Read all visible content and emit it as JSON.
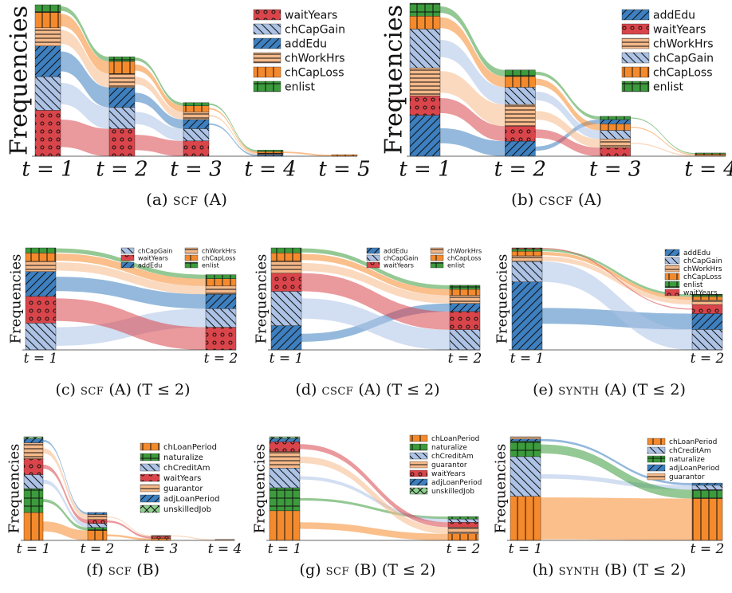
{
  "colors": {
    "waitYears": "#d9454a",
    "chCapGain": "#adc3e6",
    "addEdu": "#3d7fbf",
    "chWorkHrs": "#f5b98a",
    "chCapLoss": "#f58a2c",
    "enlist": "#3c9b3c",
    "chLoanPeriod": "#f58a2c",
    "naturalize": "#3c9b3c",
    "chCreditAm": "#adc3e6",
    "guarantor": "#f5b98a",
    "adjLoanPeriod": "#3d7fbf",
    "unskilledJob": "#8fd08f"
  },
  "patterns": {
    "waitYears": "dots",
    "chCapGain": "diag-back",
    "addEdu": "diag-fwd",
    "chWorkHrs": "hlines",
    "chCapLoss": "vlines",
    "enlist": "grid",
    "chLoanPeriod": "vlines",
    "naturalize": "grid",
    "chCreditAm": "diag-back",
    "guarantor": "hlines",
    "adjLoanPeriod": "diag-fwd",
    "unskilledJob": "cross"
  },
  "y_axis_label": "Frequencies",
  "chart_data": [
    {
      "id": "a",
      "type": "sankey",
      "caption_letter": "(a)",
      "caption_method": "scf",
      "caption_suffix": "(A)",
      "legend": [
        "waitYears",
        "chCapGain",
        "addEdu",
        "chWorkHrs",
        "chCapLoss",
        "enlist"
      ],
      "time_labels": [
        "t = 1",
        "t = 2",
        "t = 3",
        "t = 4",
        "t = 5"
      ],
      "stacks": [
        [
          [
            "waitYears",
            30
          ],
          [
            "chCapGain",
            22
          ],
          [
            "addEdu",
            20
          ],
          [
            "chWorkHrs",
            12
          ],
          [
            "chCapLoss",
            10
          ],
          [
            "enlist",
            5
          ]
        ],
        [
          [
            "waitYears",
            18
          ],
          [
            "chCapGain",
            14
          ],
          [
            "addEdu",
            13
          ],
          [
            "chWorkHrs",
            9
          ],
          [
            "chCapLoss",
            8
          ],
          [
            "enlist",
            3
          ]
        ],
        [
          [
            "waitYears",
            10
          ],
          [
            "chCapGain",
            8
          ],
          [
            "addEdu",
            6
          ],
          [
            "chWorkHrs",
            5
          ],
          [
            "chCapLoss",
            4
          ],
          [
            "enlist",
            2
          ]
        ],
        [
          [
            "addEdu",
            1
          ],
          [
            "chWorkHrs",
            1
          ],
          [
            "chCapLoss",
            1
          ],
          [
            "enlist",
            1
          ]
        ],
        [
          [
            "chCapLoss",
            1
          ]
        ]
      ]
    },
    {
      "id": "b",
      "type": "sankey",
      "caption_letter": "(b)",
      "caption_method": "cscf",
      "caption_suffix": "(A)",
      "legend": [
        "addEdu",
        "waitYears",
        "chWorkHrs",
        "chCapGain",
        "chCapLoss",
        "enlist"
      ],
      "time_labels": [
        "t = 1",
        "t = 2",
        "t = 3",
        "t = 4"
      ],
      "stacks": [
        [
          [
            "addEdu",
            38
          ],
          [
            "waitYears",
            18
          ],
          [
            "chWorkHrs",
            26
          ],
          [
            "chCapGain",
            36
          ],
          [
            "chCapLoss",
            12
          ],
          [
            "enlist",
            12
          ]
        ],
        [
          [
            "addEdu",
            14
          ],
          [
            "waitYears",
            14
          ],
          [
            "chWorkHrs",
            20
          ],
          [
            "chCapGain",
            16
          ],
          [
            "chCapLoss",
            10
          ],
          [
            "enlist",
            6
          ]
        ],
        [
          [
            "waitYears",
            8
          ],
          [
            "chWorkHrs",
            8
          ],
          [
            "chCapGain",
            8
          ],
          [
            "chCapLoss",
            6
          ],
          [
            "addEdu",
            4
          ],
          [
            "enlist",
            3
          ]
        ],
        [
          [
            "chWorkHrs",
            1
          ],
          [
            "chCapLoss",
            1
          ],
          [
            "enlist",
            1
          ]
        ]
      ]
    },
    {
      "id": "c",
      "type": "sankey",
      "caption_letter": "(c)",
      "caption_method": "scf",
      "caption_suffix": "(A) (T ≤ 2)",
      "legend": [
        "chCapGain",
        "waitYears",
        "addEdu",
        "chWorkHrs",
        "chCapLoss",
        "enlist"
      ],
      "time_labels": [
        "t = 1",
        "t = 2"
      ],
      "stacks": [
        [
          [
            "chCapGain",
            26
          ],
          [
            "waitYears",
            26
          ],
          [
            "addEdu",
            24
          ],
          [
            "chWorkHrs",
            10
          ],
          [
            "chCapLoss",
            8
          ],
          [
            "enlist",
            5
          ]
        ],
        [
          [
            "waitYears",
            22
          ],
          [
            "chCapGain",
            18
          ],
          [
            "addEdu",
            14
          ],
          [
            "chWorkHrs",
            8
          ],
          [
            "chCapLoss",
            7
          ],
          [
            "enlist",
            4
          ]
        ]
      ]
    },
    {
      "id": "d",
      "type": "sankey",
      "caption_letter": "(d)",
      "caption_method": "cscf",
      "caption_suffix": "(A) (T ≤ 2)",
      "legend": [
        "addEdu",
        "chCapGain",
        "waitYears",
        "chWorkHrs",
        "chCapLoss",
        "enlist"
      ],
      "time_labels": [
        "t = 1",
        "t = 2"
      ],
      "stacks": [
        [
          [
            "addEdu",
            24
          ],
          [
            "chCapGain",
            34
          ],
          [
            "waitYears",
            18
          ],
          [
            "chWorkHrs",
            12
          ],
          [
            "chCapLoss",
            8
          ],
          [
            "enlist",
            5
          ]
        ],
        [
          [
            "chCapGain",
            20
          ],
          [
            "waitYears",
            18
          ],
          [
            "addEdu",
            8
          ],
          [
            "chWorkHrs",
            8
          ],
          [
            "chCapLoss",
            6
          ],
          [
            "enlist",
            4
          ]
        ]
      ]
    },
    {
      "id": "e",
      "type": "sankey",
      "caption_letter": "(e)",
      "caption_method": "synth",
      "caption_suffix": "(A) (T ≤ 2)",
      "legend": [
        "addEdu",
        "chCapGain",
        "chWorkHrs",
        "chCapLoss",
        "enlist",
        "waitYears"
      ],
      "time_labels": [
        "t = 1",
        "t = 2"
      ],
      "stacks": [
        [
          [
            "addEdu",
            60
          ],
          [
            "chCapGain",
            18
          ],
          [
            "chWorkHrs",
            5
          ],
          [
            "chCapLoss",
            4
          ],
          [
            "enlist",
            2
          ],
          [
            "waitYears",
            1
          ]
        ],
        [
          [
            "chCapGain",
            18
          ],
          [
            "addEdu",
            14
          ],
          [
            "waitYears",
            8
          ],
          [
            "chWorkHrs",
            4
          ],
          [
            "chCapLoss",
            3
          ],
          [
            "enlist",
            2
          ]
        ]
      ]
    },
    {
      "id": "f",
      "type": "sankey",
      "caption_letter": "(f)",
      "caption_method": "scf",
      "caption_suffix": "(B)",
      "legend": [
        "chLoanPeriod",
        "naturalize",
        "chCreditAm",
        "waitYears",
        "guarantor",
        "adjLoanPeriod",
        "unskilledJob"
      ],
      "time_labels": [
        "t = 1",
        "t = 2",
        "t = 3",
        "t = 4"
      ],
      "stacks": [
        [
          [
            "chLoanPeriod",
            28
          ],
          [
            "naturalize",
            24
          ],
          [
            "chCreditAm",
            14
          ],
          [
            "waitYears",
            16
          ],
          [
            "guarantor",
            16
          ],
          [
            "adjLoanPeriod",
            4
          ],
          [
            "unskilledJob",
            2
          ]
        ],
        [
          [
            "chLoanPeriod",
            10
          ],
          [
            "naturalize",
            3
          ],
          [
            "chCreditAm",
            4
          ],
          [
            "waitYears",
            4
          ],
          [
            "guarantor",
            5
          ],
          [
            "adjLoanPeriod",
            2
          ]
        ],
        [
          [
            "chLoanPeriod",
            2
          ],
          [
            "waitYears",
            2
          ],
          [
            "guarantor",
            1
          ]
        ],
        [
          [
            "guarantor",
            1
          ]
        ]
      ]
    },
    {
      "id": "g",
      "type": "sankey",
      "caption_letter": "(g)",
      "caption_method": "scf",
      "caption_suffix": "(B) (T ≤ 2)",
      "legend": [
        "chLoanPeriod",
        "naturalize",
        "chCreditAm",
        "guarantor",
        "waitYears",
        "adjLoanPeriod",
        "unskilledJob"
      ],
      "time_labels": [
        "t = 1",
        "t = 2"
      ],
      "stacks": [
        [
          [
            "chLoanPeriod",
            36
          ],
          [
            "naturalize",
            28
          ],
          [
            "chCreditAm",
            24
          ],
          [
            "guarantor",
            20
          ],
          [
            "waitYears",
            12
          ],
          [
            "adjLoanPeriod",
            4
          ],
          [
            "unskilledJob",
            2
          ]
        ],
        [
          [
            "chLoanPeriod",
            8
          ],
          [
            "guarantor",
            8
          ],
          [
            "waitYears",
            6
          ],
          [
            "chCreditAm",
            4
          ],
          [
            "naturalize",
            3
          ]
        ]
      ]
    },
    {
      "id": "h",
      "type": "sankey",
      "caption_letter": "(h)",
      "caption_method": "synth",
      "caption_suffix": "(B) (T ≤ 2)",
      "legend": [
        "chLoanPeriod",
        "chCreditAm",
        "naturalize",
        "adjLoanPeriod",
        "guarantor"
      ],
      "time_labels": [
        "t = 1",
        "t = 2"
      ],
      "stacks": [
        [
          [
            "chLoanPeriod",
            40
          ],
          [
            "chCreditAm",
            36
          ],
          [
            "naturalize",
            14
          ],
          [
            "adjLoanPeriod",
            2
          ],
          [
            "guarantor",
            2
          ]
        ],
        [
          [
            "chLoanPeriod",
            38
          ],
          [
            "naturalize",
            8
          ],
          [
            "chCreditAm",
            4
          ],
          [
            "adjLoanPeriod",
            2
          ]
        ]
      ]
    }
  ]
}
